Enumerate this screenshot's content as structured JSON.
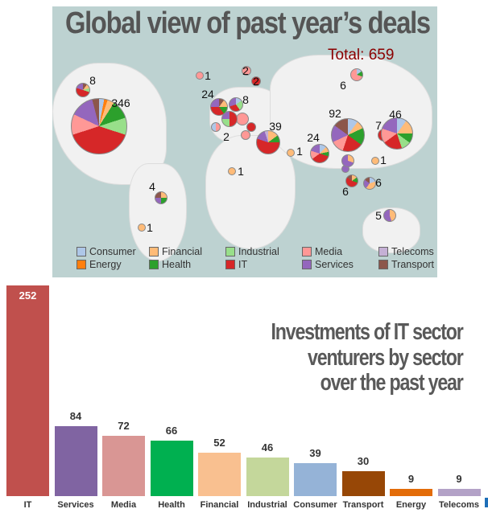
{
  "map": {
    "title": "Global view of past year’s deals",
    "total": "Total: 659",
    "pie_labels": [
      "8",
      "346",
      "1",
      "2",
      "2",
      "6",
      "24",
      "8",
      "2",
      "39",
      "1",
      "24",
      "92",
      "7",
      "46",
      "1",
      "1",
      "6",
      "6",
      "4",
      "5",
      "1"
    ],
    "legend": [
      {
        "label": "Consumer",
        "color": "#aec7e8"
      },
      {
        "label": "Financial",
        "color": "#ffbb78"
      },
      {
        "label": "Industrial",
        "color": "#98df8a"
      },
      {
        "label": "Media",
        "color": "#ff9896"
      },
      {
        "label": "Telecoms",
        "color": "#c5b0d5"
      },
      {
        "label": "Energy",
        "color": "#ff7f0e"
      },
      {
        "label": "Health",
        "color": "#2ca02c"
      },
      {
        "label": "IT",
        "color": "#d62728"
      },
      {
        "label": "Services",
        "color": "#9467bd"
      },
      {
        "label": "Transport",
        "color": "#8c564b"
      }
    ]
  },
  "chart_data": {
    "type": "bar",
    "title": "Investments of IT sector venturers by sector over the past year",
    "title_lines": [
      "Investments of IT sector",
      "venturers by sector",
      "over the past year"
    ],
    "categories": [
      "IT",
      "Services",
      "Media",
      "Health",
      "Financial",
      "Industrial",
      "Consumer",
      "Transport",
      "Energy",
      "Telecoms"
    ],
    "values": [
      252,
      84,
      72,
      66,
      52,
      46,
      39,
      30,
      9,
      9
    ],
    "colors": [
      "#c0504d",
      "#8064a2",
      "#d99694",
      "#00b050",
      "#f9c090",
      "#c4d79b",
      "#95b3d7",
      "#974706",
      "#e36c09",
      "#b3a2c7"
    ],
    "value_labels": [
      "252",
      "84",
      "72",
      "66",
      "52",
      "46",
      "39",
      "30",
      "9",
      "9"
    ],
    "xlabel": "",
    "ylabel": "",
    "ylim": [
      0,
      252
    ]
  }
}
